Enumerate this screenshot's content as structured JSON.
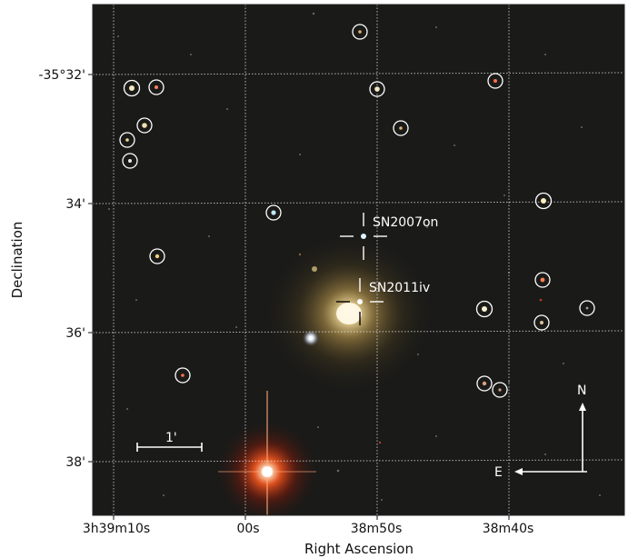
{
  "axes": {
    "xlabel": "Right Ascension",
    "ylabel": "Declination",
    "x_ticks": [
      "3h39m10s",
      "00s",
      "38m50s",
      "38m40s"
    ],
    "y_ticks": [
      "-35°32'",
      "34'",
      "36'",
      "38'"
    ]
  },
  "annotations": {
    "sn1": "SN2007on",
    "sn2": "SN2011iv",
    "scale_label": "1'",
    "north": "N",
    "east": "E"
  },
  "colors": {
    "sky": "#1a1a18",
    "galaxy_core": "#fff6dc",
    "galaxy_halo": "#b8903c",
    "bright_star": "#ff3b10",
    "marker": "#ffffff"
  }
}
